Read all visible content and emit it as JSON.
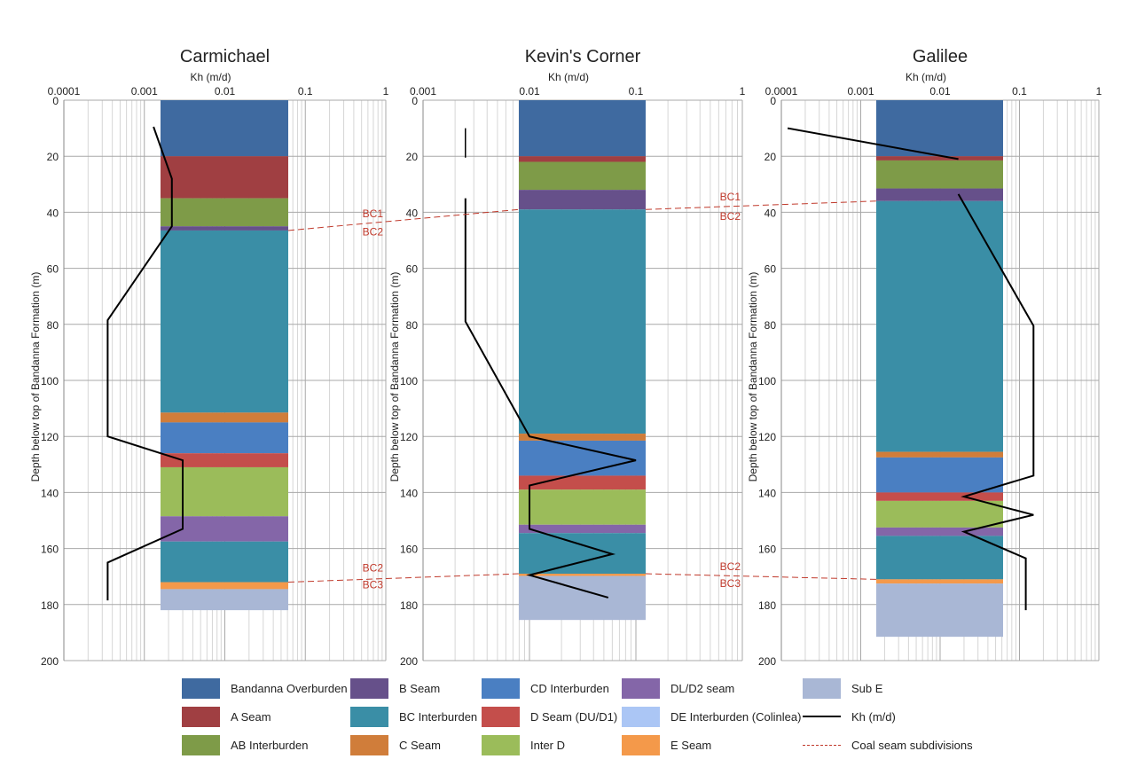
{
  "chart_data": [
    {
      "type": "stratigraphic-column",
      "title": "Carmichael",
      "xlabel": "Kh (m/d)",
      "ylabel": "Depth below top of Bandanna Formation (m)",
      "xscale": "log",
      "xlim": [
        0.0001,
        1
      ],
      "ylim": [
        0,
        200
      ],
      "xticks": [
        "0.0001",
        "0.001",
        "0.01",
        "0.1",
        "1"
      ],
      "yticks": [
        "0",
        "20",
        "40",
        "60",
        "80",
        "100",
        "120",
        "140",
        "160",
        "180",
        "200"
      ],
      "layers": [
        {
          "unit": "Bandanna Overburden",
          "top": 0,
          "bottom": 20
        },
        {
          "unit": "A Seam",
          "top": 20,
          "bottom": 35
        },
        {
          "unit": "AB Interburden",
          "top": 35,
          "bottom": 45
        },
        {
          "unit": "B Seam",
          "top": 45,
          "bottom": 46.5
        },
        {
          "unit": "BC Interburden",
          "top": 46.5,
          "bottom": 111.5
        },
        {
          "unit": "C Seam",
          "top": 111.5,
          "bottom": 115
        },
        {
          "unit": "CD Interburden",
          "top": 115,
          "bottom": 126
        },
        {
          "unit": "D Seam (DU/D1)",
          "top": 126,
          "bottom": 131
        },
        {
          "unit": "Inter D",
          "top": 131,
          "bottom": 148.5
        },
        {
          "unit": "DL/D2 seam",
          "top": 148.5,
          "bottom": 157.5
        },
        {
          "unit": "BC Interburden",
          "top": 157.5,
          "bottom": 172
        },
        {
          "unit": "E Seam",
          "top": 172,
          "bottom": 174.5
        },
        {
          "unit": "Sub E",
          "top": 174.5,
          "bottom": 182
        }
      ],
      "kh_profile": [
        {
          "kh": 0.0013,
          "depth": 9.5
        },
        {
          "kh": 0.0022,
          "depth": 28
        },
        {
          "kh": 0.0022,
          "depth": 45
        },
        {
          "kh": 0.00035,
          "depth": 78.5
        },
        {
          "kh": 0.00035,
          "depth": 120
        },
        {
          "kh": 0.003,
          "depth": 128.5
        },
        {
          "kh": 0.003,
          "depth": 153
        },
        {
          "kh": 0.00035,
          "depth": 165
        },
        {
          "kh": 0.00035,
          "depth": 178.5
        }
      ],
      "seam_labels": [
        {
          "text": "BC1",
          "depth": 40.5
        },
        {
          "text": "BC2",
          "depth": 47
        },
        {
          "text": "BC2",
          "depth": 167
        },
        {
          "text": "BC3",
          "depth": 173
        }
      ]
    },
    {
      "type": "stratigraphic-column",
      "title": "Kevin's Corner",
      "xlabel": "Kh (m/d)",
      "ylabel": "Depth below top of Bandanna Formation (m)",
      "xscale": "log",
      "xlim": [
        0.001,
        1
      ],
      "ylim": [
        0,
        200
      ],
      "xticks": [
        "0.001",
        "0.01",
        "0.1",
        "1"
      ],
      "yticks": [
        "0",
        "20",
        "40",
        "60",
        "80",
        "100",
        "120",
        "140",
        "160",
        "180",
        "200"
      ],
      "layers": [
        {
          "unit": "Bandanna Overburden",
          "top": 0,
          "bottom": 20
        },
        {
          "unit": "A Seam",
          "top": 20,
          "bottom": 22
        },
        {
          "unit": "AB Interburden",
          "top": 22,
          "bottom": 32
        },
        {
          "unit": "B Seam",
          "top": 32,
          "bottom": 39
        },
        {
          "unit": "BC Interburden",
          "top": 39,
          "bottom": 119
        },
        {
          "unit": "C Seam",
          "top": 119,
          "bottom": 121.5
        },
        {
          "unit": "CD Interburden",
          "top": 121.5,
          "bottom": 134
        },
        {
          "unit": "D Seam (DU/D1)",
          "top": 134,
          "bottom": 139
        },
        {
          "unit": "Inter D",
          "top": 139,
          "bottom": 151.5
        },
        {
          "unit": "DL/D2 seam",
          "top": 151.5,
          "bottom": 154.5
        },
        {
          "unit": "BC Interburden",
          "top": 154.5,
          "bottom": 169
        },
        {
          "unit": "E Seam",
          "top": 169,
          "bottom": 169.8
        },
        {
          "unit": "Sub E",
          "top": 169.8,
          "bottom": 185.5
        }
      ],
      "kh_profile": [
        {
          "kh": 0.0025,
          "depth": 35
        },
        {
          "kh": 0.0025,
          "depth": 79
        },
        {
          "kh": 0.01,
          "depth": 120
        },
        {
          "kh": 0.1,
          "depth": 128.5
        },
        {
          "kh": 0.01,
          "depth": 137.5
        },
        {
          "kh": 0.01,
          "depth": 153
        },
        {
          "kh": 0.06,
          "depth": 162
        },
        {
          "kh": 0.01,
          "depth": 169.5
        },
        {
          "kh": 0.055,
          "depth": 177.5
        }
      ],
      "kh_segment_top": {
        "kh": 0.0025,
        "from": 10,
        "to": 20.5
      },
      "seam_labels": [
        {
          "text": "BC1",
          "depth": 34.5
        },
        {
          "text": "BC2",
          "depth": 41.5
        },
        {
          "text": "BC2",
          "depth": 166.5
        },
        {
          "text": "BC3",
          "depth": 172.5
        }
      ]
    },
    {
      "type": "stratigraphic-column",
      "title": "Galilee",
      "xlabel": "Kh (m/d)",
      "ylabel": "Depth below top of Bandanna Formation (m)",
      "xscale": "log",
      "xlim": [
        0.0001,
        1
      ],
      "ylim": [
        0,
        200
      ],
      "xticks": [
        "0.0001",
        "0.001",
        "0.01",
        "0.1",
        "1"
      ],
      "yticks": [
        "0",
        "20",
        "40",
        "60",
        "80",
        "100",
        "120",
        "140",
        "160",
        "180",
        "200"
      ],
      "layers": [
        {
          "unit": "Bandanna Overburden",
          "top": 0,
          "bottom": 20
        },
        {
          "unit": "A Seam",
          "top": 20,
          "bottom": 21.5
        },
        {
          "unit": "AB Interburden",
          "top": 21.5,
          "bottom": 31.5
        },
        {
          "unit": "B Seam",
          "top": 31.5,
          "bottom": 36
        },
        {
          "unit": "BC Interburden",
          "top": 36,
          "bottom": 125.5
        },
        {
          "unit": "C Seam",
          "top": 125.5,
          "bottom": 127.5
        },
        {
          "unit": "CD Interburden",
          "top": 127.5,
          "bottom": 140
        },
        {
          "unit": "D Seam (DU/D1)",
          "top": 140,
          "bottom": 143
        },
        {
          "unit": "Inter D",
          "top": 143,
          "bottom": 152.5
        },
        {
          "unit": "DL/D2 seam",
          "top": 152.5,
          "bottom": 155.5
        },
        {
          "unit": "BC Interburden",
          "top": 155.5,
          "bottom": 171
        },
        {
          "unit": "E Seam",
          "top": 171,
          "bottom": 172.5
        },
        {
          "unit": "Sub E",
          "top": 172.5,
          "bottom": 191.5
        }
      ],
      "kh_profile_top": [
        {
          "kh": 0.00012,
          "depth": 10
        },
        {
          "kh": 0.017,
          "depth": 21
        }
      ],
      "kh_profile": [
        {
          "kh": 0.017,
          "depth": 33.5
        },
        {
          "kh": 0.15,
          "depth": 80.5
        },
        {
          "kh": 0.15,
          "depth": 134
        },
        {
          "kh": 0.02,
          "depth": 141.5
        },
        {
          "kh": 0.15,
          "depth": 148
        },
        {
          "kh": 0.02,
          "depth": 154
        },
        {
          "kh": 0.12,
          "depth": 163.5
        },
        {
          "kh": 0.12,
          "depth": 182
        }
      ],
      "seam_labels": []
    }
  ],
  "legend": [
    {
      "label": "Bandanna Overburden",
      "kind": "swatch",
      "color": "#3f6aa0"
    },
    {
      "label": "A Seam",
      "kind": "swatch",
      "color": "#a03f42"
    },
    {
      "label": "AB Interburden",
      "kind": "swatch",
      "color": "#7e9b48"
    },
    {
      "label": "B Seam",
      "kind": "swatch",
      "color": "#66508a"
    },
    {
      "label": "BC Interburden",
      "kind": "swatch",
      "color": "#3a8ea6"
    },
    {
      "label": "C Seam",
      "kind": "swatch",
      "color": "#d07d3a"
    },
    {
      "label": "CD Interburden",
      "kind": "swatch",
      "color": "#4a7fc2"
    },
    {
      "label": "D Seam (DU/D1)",
      "kind": "swatch",
      "color": "#c44e4b"
    },
    {
      "label": "Inter D",
      "kind": "swatch",
      "color": "#9bbc5a"
    },
    {
      "label": "DL/D2 seam",
      "kind": "swatch",
      "color": "#8466a8"
    },
    {
      "label": "DE Interburden (Colinlea)",
      "kind": "swatch",
      "color": "#abc6f5"
    },
    {
      "label": "E Seam",
      "kind": "swatch",
      "color": "#f4994a"
    },
    {
      "label": "Sub E",
      "kind": "swatch",
      "color": "#a9b7d5"
    },
    {
      "label": "Kh (m/d)",
      "kind": "line",
      "color": "#000000"
    },
    {
      "label": "Coal seam subdivisions",
      "kind": "dashed",
      "color": "#c0392b"
    }
  ],
  "colors": {
    "Bandanna Overburden": "#3f6aa0",
    "A Seam": "#a03f42",
    "AB Interburden": "#7e9b48",
    "B Seam": "#66508a",
    "BC Interburden": "#3a8ea6",
    "C Seam": "#d07d3a",
    "CD Interburden": "#4a7fc2",
    "D Seam (DU/D1)": "#c44e4b",
    "Inter D": "#9bbc5a",
    "DL/D2 seam": "#8466a8",
    "DE Interburden (Colinlea)": "#abc6f5",
    "E Seam": "#f4994a",
    "Sub E": "#a9b7d5",
    "kh_line": "#000000",
    "subdivision_line": "#c0392b",
    "grid": "#bdbdbd",
    "text": "#222222"
  }
}
